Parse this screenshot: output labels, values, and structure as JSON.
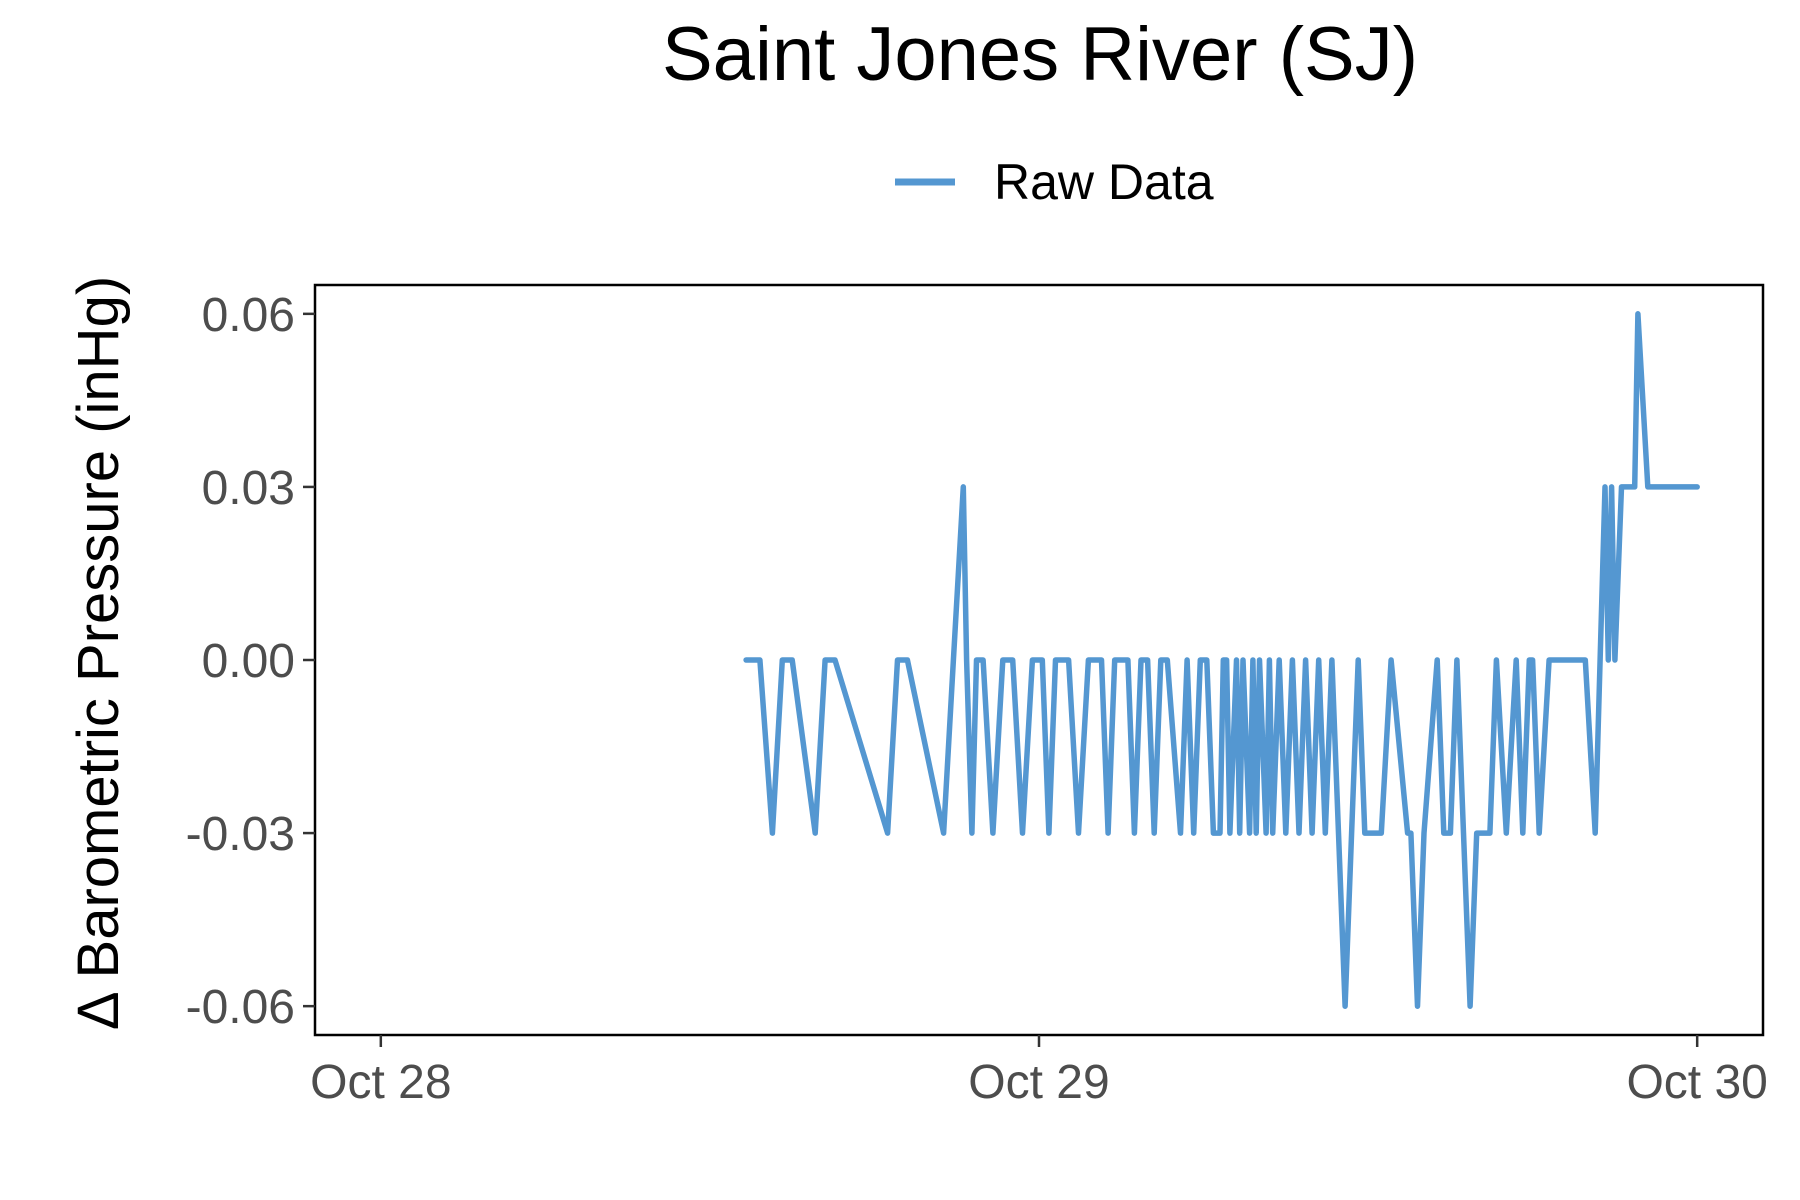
{
  "chart_data": {
    "type": "line",
    "title": "Saint Jones River (SJ)",
    "xlabel": "",
    "ylabel": "Δ Barometric Pressure (inHg)",
    "x_tick_labels": [
      "Oct 28",
      "Oct 29",
      "Oct 30"
    ],
    "x_ticks_days": [
      0,
      1,
      2
    ],
    "xlim_days": [
      -0.1,
      2.1
    ],
    "y_tick_labels": [
      "0.06",
      "0.03",
      "0.00",
      "-0.03",
      "-0.06"
    ],
    "y_ticks": [
      0.06,
      0.03,
      0.0,
      -0.03,
      -0.06
    ],
    "ylim": [
      -0.065,
      0.065
    ],
    "grid": false,
    "legend_position": "top",
    "series": [
      {
        "name": "Raw Data",
        "color": "#5497d1",
        "x_days": [
          0.555,
          0.576,
          0.595,
          0.61,
          0.625,
          0.66,
          0.675,
          0.69,
          0.77,
          0.785,
          0.8,
          0.855,
          0.87,
          0.885,
          0.89,
          0.898,
          0.905,
          0.915,
          0.93,
          0.945,
          0.96,
          0.975,
          0.99,
          1.005,
          1.015,
          1.025,
          1.045,
          1.06,
          1.075,
          1.095,
          1.105,
          1.115,
          1.135,
          1.145,
          1.155,
          1.165,
          1.175,
          1.185,
          1.195,
          1.215,
          1.225,
          1.235,
          1.245,
          1.255,
          1.265,
          1.275,
          1.28,
          1.285,
          1.29,
          1.3,
          1.305,
          1.31,
          1.32,
          1.325,
          1.33,
          1.335,
          1.345,
          1.35,
          1.355,
          1.365,
          1.375,
          1.385,
          1.395,
          1.405,
          1.415,
          1.425,
          1.435,
          1.445,
          1.455,
          1.465,
          1.475,
          1.485,
          1.495,
          1.52,
          1.535,
          1.56,
          1.565,
          1.575,
          1.585,
          1.605,
          1.615,
          1.625,
          1.635,
          1.645,
          1.655,
          1.665,
          1.675,
          1.685,
          1.695,
          1.71,
          1.725,
          1.735,
          1.745,
          1.75,
          1.76,
          1.775,
          1.79,
          1.81,
          1.83,
          1.845,
          1.86,
          1.865,
          1.87,
          1.875,
          1.885,
          1.895,
          1.9,
          1.905,
          1.91,
          1.925,
          1.935,
          1.94,
          1.955,
          1.965,
          1.975,
          1.985,
          2.0
        ],
        "y": [
          0.0,
          0.0,
          -0.03,
          0.0,
          0.0,
          -0.03,
          0.0,
          0.0,
          -0.03,
          0.0,
          0.0,
          -0.03,
          0.0,
          0.03,
          0.0,
          -0.03,
          0.0,
          0.0,
          -0.03,
          0.0,
          0.0,
          -0.03,
          0.0,
          0.0,
          -0.03,
          0.0,
          0.0,
          -0.03,
          0.0,
          0.0,
          -0.03,
          0.0,
          0.0,
          -0.03,
          0.0,
          0.0,
          -0.03,
          0.0,
          0.0,
          -0.03,
          0.0,
          -0.03,
          0.0,
          0.0,
          -0.03,
          -0.03,
          0.0,
          0.0,
          -0.03,
          0.0,
          -0.03,
          0.0,
          -0.03,
          0.0,
          -0.03,
          0.0,
          -0.03,
          0.0,
          -0.03,
          0.0,
          -0.03,
          0.0,
          -0.03,
          0.0,
          -0.03,
          0.0,
          -0.03,
          0.0,
          -0.03,
          -0.06,
          -0.03,
          0.0,
          -0.03,
          -0.03,
          0.0,
          -0.03,
          -0.03,
          -0.06,
          -0.03,
          0.0,
          -0.03,
          -0.03,
          0.0,
          -0.03,
          -0.06,
          -0.03,
          -0.03,
          -0.03,
          0.0,
          -0.03,
          0.0,
          -0.03,
          0.0,
          0.0,
          -0.03,
          0.0,
          0.0,
          0.0,
          0.0,
          -0.03,
          0.03,
          0.0,
          0.03,
          0.0,
          0.03,
          0.03,
          0.03,
          0.03,
          0.06,
          0.03,
          0.03,
          0.03,
          0.03,
          0.03,
          0.03,
          0.03,
          0.03
        ]
      }
    ]
  }
}
